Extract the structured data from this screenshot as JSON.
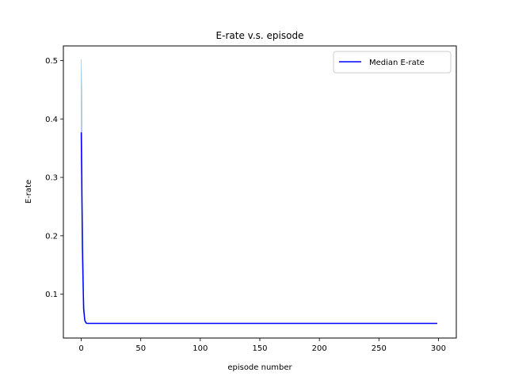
{
  "chart_data": {
    "type": "line",
    "title": "E-rate v.s. episode",
    "xlabel": "episode number",
    "ylabel": "E-rate",
    "xlim": [
      -15,
      315
    ],
    "ylim": [
      0.025,
      0.525
    ],
    "xticks": [
      0,
      50,
      100,
      150,
      200,
      250,
      300
    ],
    "yticks": [
      0.1,
      0.2,
      0.3,
      0.4,
      0.5
    ],
    "ytick_labels": [
      "0.1",
      "0.2",
      "0.3",
      "0.4",
      "0.5"
    ],
    "grid": false,
    "legend": {
      "placement": "top-right",
      "entries": [
        "Median E-rate"
      ]
    },
    "series": [
      {
        "name": "Median E-rate",
        "color": "#0000ff",
        "x": [
          0,
          1,
          2,
          3,
          4,
          5,
          10,
          299
        ],
        "y": [
          0.377,
          0.18,
          0.075,
          0.055,
          0.051,
          0.05,
          0.05,
          0.05
        ]
      }
    ],
    "band": {
      "color": "#1f77b4",
      "x": [
        0,
        0.5,
        1,
        2,
        3,
        4,
        5,
        10,
        299
      ],
      "upper": [
        0.502,
        0.45,
        0.26,
        0.1,
        0.06,
        0.052,
        0.05,
        0.05,
        0.05
      ],
      "lower": [
        0.35,
        0.25,
        0.15,
        0.07,
        0.054,
        0.05,
        0.05,
        0.05,
        0.05
      ]
    }
  }
}
